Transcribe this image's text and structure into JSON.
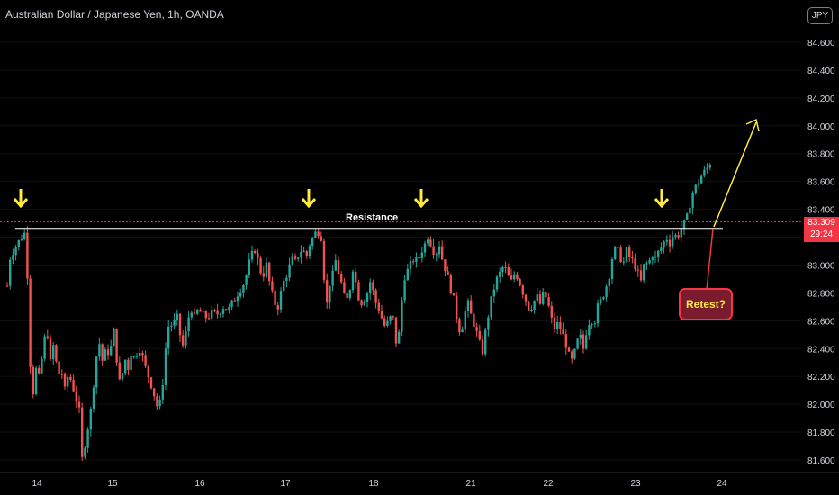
{
  "header": {
    "title": "Australian Dollar / Japanese Yen, 1h, OANDA",
    "currency_badge": "JPY"
  },
  "price_label": {
    "price": "83.309",
    "countdown": "29:24"
  },
  "annotations": {
    "resistance": "Resistance",
    "retest": "Retest?"
  },
  "colors": {
    "up": "#26a69a",
    "down": "#ef5350",
    "arrow": "#ffeb3b",
    "resistance": "#ffffff",
    "price_line": "#f23645"
  },
  "chart_data": {
    "type": "candlestick",
    "title": "Australian Dollar / Japanese Yen, 1h, OANDA",
    "xlabel": "",
    "ylabel": "",
    "ylim": [
      81.55,
      84.75
    ],
    "y_ticks": [
      "84.600",
      "84.400",
      "84.200",
      "84.000",
      "83.800",
      "83.600",
      "83.400",
      "83.200",
      "83.000",
      "82.800",
      "82.600",
      "82.400",
      "82.200",
      "82.000",
      "81.800",
      "81.600"
    ],
    "x_ticks": [
      "14",
      "15",
      "16",
      "17",
      "18",
      "21",
      "22",
      "23",
      "24"
    ],
    "resistance_level": 83.26,
    "current_price": 83.309,
    "path": [
      [
        0,
        82.85
      ],
      [
        3,
        83.05
      ],
      [
        8,
        83.12
      ],
      [
        14,
        83.18
      ],
      [
        18,
        83.22
      ],
      [
        21,
        83.24
      ],
      [
        22,
        83.05
      ],
      [
        24,
        82.45
      ],
      [
        28,
        82.05
      ],
      [
        32,
        82.25
      ],
      [
        36,
        82.18
      ],
      [
        40,
        82.42
      ],
      [
        44,
        82.55
      ],
      [
        48,
        82.3
      ],
      [
        52,
        82.45
      ],
      [
        56,
        82.2
      ],
      [
        60,
        82.25
      ],
      [
        64,
        82.1
      ],
      [
        68,
        82.22
      ],
      [
        72,
        82.15
      ],
      [
        76,
        82.05
      ],
      [
        80,
        81.95
      ],
      [
        83,
        81.6
      ],
      [
        86,
        81.7
      ],
      [
        90,
        81.85
      ],
      [
        94,
        82.0
      ],
      [
        98,
        82.3
      ],
      [
        102,
        82.45
      ],
      [
        106,
        82.3
      ],
      [
        110,
        82.4
      ],
      [
        114,
        82.35
      ],
      [
        118,
        82.55
      ],
      [
        122,
        82.3
      ],
      [
        126,
        82.1
      ],
      [
        130,
        82.35
      ],
      [
        134,
        82.25
      ],
      [
        138,
        82.38
      ],
      [
        142,
        82.32
      ],
      [
        146,
        82.42
      ],
      [
        150,
        82.35
      ],
      [
        154,
        82.25
      ],
      [
        158,
        82.18
      ],
      [
        162,
        82.1
      ],
      [
        168,
        81.95
      ],
      [
        172,
        82.1
      ],
      [
        176,
        82.4
      ],
      [
        180,
        82.6
      ],
      [
        184,
        82.55
      ],
      [
        188,
        82.65
      ],
      [
        192,
        82.5
      ],
      [
        196,
        82.4
      ],
      [
        200,
        82.58
      ],
      [
        204,
        82.7
      ],
      [
        208,
        82.62
      ],
      [
        212,
        82.68
      ],
      [
        216,
        82.65
      ],
      [
        222,
        82.62
      ],
      [
        228,
        82.66
      ],
      [
        234,
        82.65
      ],
      [
        240,
        82.7
      ],
      [
        246,
        82.68
      ],
      [
        252,
        82.75
      ],
      [
        258,
        82.82
      ],
      [
        264,
        82.88
      ],
      [
        270,
        83.05
      ],
      [
        276,
        83.12
      ],
      [
        280,
        82.98
      ],
      [
        284,
        82.92
      ],
      [
        288,
        83.0
      ],
      [
        292,
        82.85
      ],
      [
        296,
        82.75
      ],
      [
        300,
        82.68
      ],
      [
        304,
        82.8
      ],
      [
        308,
        82.9
      ],
      [
        312,
        82.95
      ],
      [
        316,
        83.05
      ],
      [
        320,
        83.02
      ],
      [
        324,
        83.08
      ],
      [
        328,
        83.12
      ],
      [
        332,
        83.05
      ],
      [
        336,
        83.15
      ],
      [
        340,
        83.2
      ],
      [
        344,
        83.25
      ],
      [
        348,
        83.22
      ],
      [
        351,
        83.15
      ],
      [
        354,
        82.45
      ],
      [
        356,
        82.9
      ],
      [
        360,
        82.85
      ],
      [
        364,
        83.05
      ],
      [
        368,
        82.95
      ],
      [
        372,
        82.85
      ],
      [
        376,
        82.72
      ],
      [
        380,
        82.8
      ],
      [
        384,
        82.98
      ],
      [
        388,
        82.85
      ],
      [
        392,
        82.72
      ],
      [
        396,
        82.75
      ],
      [
        400,
        82.8
      ],
      [
        404,
        82.9
      ],
      [
        408,
        82.75
      ],
      [
        412,
        82.7
      ],
      [
        416,
        82.62
      ],
      [
        420,
        82.55
      ],
      [
        424,
        82.6
      ],
      [
        428,
        82.65
      ],
      [
        432,
        82.45
      ],
      [
        436,
        82.52
      ],
      [
        440,
        82.9
      ],
      [
        444,
        82.95
      ],
      [
        448,
        83.0
      ],
      [
        452,
        83.05
      ],
      [
        456,
        83.02
      ],
      [
        460,
        83.1
      ],
      [
        464,
        83.15
      ],
      [
        468,
        83.22
      ],
      [
        472,
        83.12
      ],
      [
        476,
        83.08
      ],
      [
        480,
        83.15
      ],
      [
        484,
        83.02
      ],
      [
        488,
        82.95
      ],
      [
        492,
        82.85
      ],
      [
        496,
        82.75
      ],
      [
        500,
        82.6
      ],
      [
        504,
        82.5
      ],
      [
        508,
        82.65
      ],
      [
        512,
        82.72
      ],
      [
        516,
        82.62
      ],
      [
        520,
        82.55
      ],
      [
        524,
        82.45
      ],
      [
        528,
        82.38
      ],
      [
        532,
        82.55
      ],
      [
        536,
        82.7
      ],
      [
        540,
        82.82
      ],
      [
        544,
        82.9
      ],
      [
        548,
        82.95
      ],
      [
        552,
        83.0
      ],
      [
        556,
        82.92
      ],
      [
        560,
        82.88
      ],
      [
        564,
        82.95
      ],
      [
        568,
        82.9
      ],
      [
        572,
        82.82
      ],
      [
        576,
        82.75
      ],
      [
        580,
        82.68
      ],
      [
        584,
        82.72
      ],
      [
        588,
        82.78
      ],
      [
        592,
        82.72
      ],
      [
        596,
        82.8
      ],
      [
        600,
        82.75
      ],
      [
        604,
        82.62
      ],
      [
        608,
        82.55
      ],
      [
        612,
        82.58
      ],
      [
        616,
        82.52
      ],
      [
        620,
        82.45
      ],
      [
        624,
        82.35
      ],
      [
        628,
        82.3
      ],
      [
        632,
        82.42
      ],
      [
        636,
        82.5
      ],
      [
        640,
        82.4
      ],
      [
        644,
        82.55
      ],
      [
        648,
        82.62
      ],
      [
        652,
        82.58
      ],
      [
        656,
        82.7
      ],
      [
        660,
        82.75
      ],
      [
        664,
        82.82
      ],
      [
        668,
        82.9
      ],
      [
        672,
        83.05
      ],
      [
        676,
        83.12
      ],
      [
        680,
        83.08
      ],
      [
        684,
        83.0
      ],
      [
        688,
        83.1
      ],
      [
        692,
        83.05
      ],
      [
        696,
        83.02
      ],
      [
        700,
        82.95
      ],
      [
        704,
        82.88
      ],
      [
        708,
        83.02
      ],
      [
        712,
        83.0
      ],
      [
        716,
        83.08
      ],
      [
        720,
        83.05
      ],
      [
        724,
        83.1
      ],
      [
        728,
        83.14
      ],
      [
        732,
        83.2
      ],
      [
        736,
        83.16
      ],
      [
        740,
        83.22
      ],
      [
        744,
        83.2
      ],
      [
        748,
        83.25
      ],
      [
        752,
        83.3
      ],
      [
        756,
        83.35
      ],
      [
        760,
        83.5
      ],
      [
        764,
        83.55
      ],
      [
        768,
        83.6
      ],
      [
        772,
        83.65
      ],
      [
        776,
        83.68
      ],
      [
        780,
        83.72
      ],
      [
        783,
        83.78
      ],
      [
        786,
        83.62
      ],
      [
        789,
        83.4
      ],
      [
        792,
        83.31
      ]
    ]
  }
}
